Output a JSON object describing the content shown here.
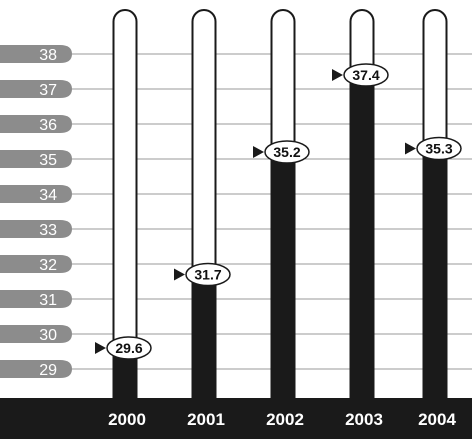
{
  "chart_data": {
    "type": "bar",
    "categories": [
      "2000",
      "2001",
      "2002",
      "2003",
      "2004"
    ],
    "values": [
      29.6,
      31.7,
      35.2,
      37.4,
      35.3
    ],
    "value_labels": [
      "29.6",
      "31.7",
      "35.2",
      "37.4",
      "35.3"
    ],
    "y_ticks": [
      "38",
      "37",
      "36",
      "35",
      "34",
      "33",
      "32",
      "31",
      "30",
      "29"
    ],
    "ylim": [
      28.6,
      38.7
    ],
    "title": "",
    "xlabel": "",
    "ylabel": "",
    "grid": true,
    "colors": {
      "bar_fill": "#1a1a1a",
      "tube_outline": "#1a1a1a",
      "tick_label_bg": "#8c8c8c",
      "tick_label_text": "#ffffff",
      "gridline": "#9a9a9a",
      "bottom_band": "#1a1a1a",
      "category_text": "#ffffff"
    }
  }
}
